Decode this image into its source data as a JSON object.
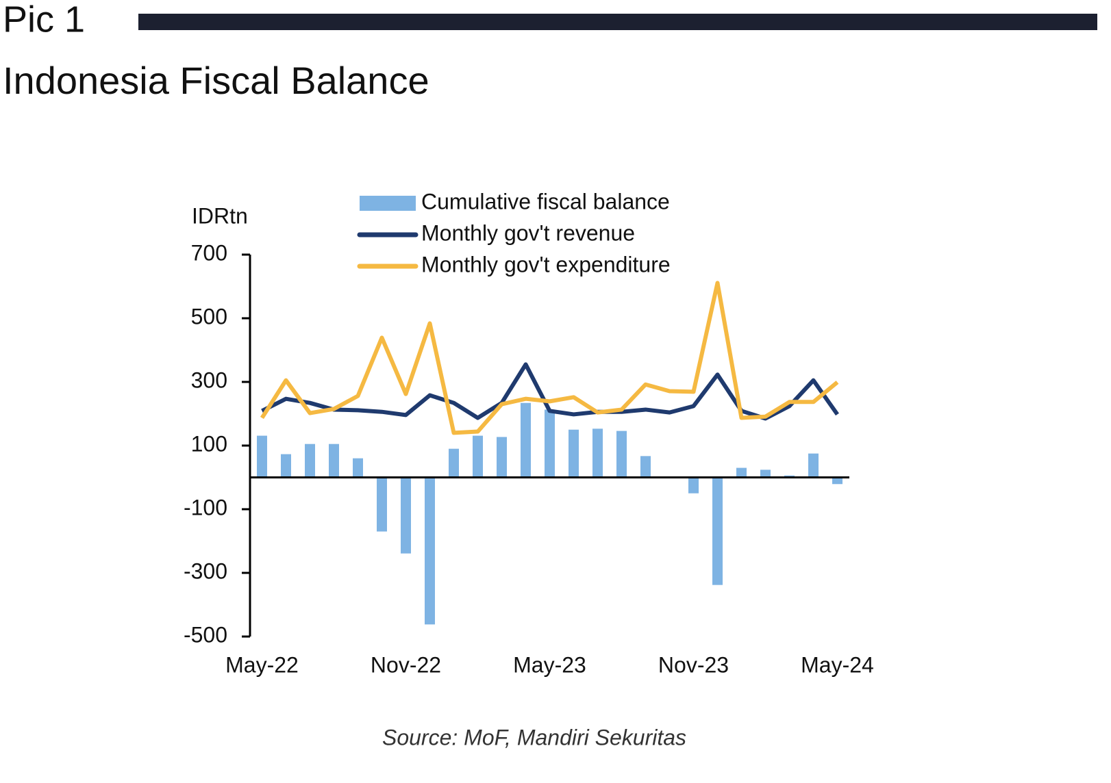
{
  "header": "Pic 1",
  "chart_data": {
    "type": "bar-line",
    "title": "Indonesia Fiscal Balance",
    "y_label": "IDRtn",
    "source": "Source: MoF, Mandiri Sekuritas",
    "categories": [
      "May-22",
      null,
      null,
      null,
      null,
      null,
      "Nov-22",
      null,
      null,
      null,
      null,
      null,
      "May-23",
      null,
      null,
      null,
      null,
      null,
      "Nov-23",
      null,
      null,
      null,
      null,
      null,
      "May-24"
    ],
    "series": [
      {
        "name": "Cumulative fiscal balance",
        "kind": "bar",
        "color": "#7eb3e3",
        "values": [
          131,
          73,
          105,
          105,
          60,
          -170,
          -239,
          -462,
          90,
          131,
          127,
          234,
          213,
          150,
          153,
          146,
          67,
          -1,
          -50,
          -338,
          30,
          24,
          6,
          75,
          -21
        ]
      },
      {
        "name": "Monthly gov't revenue",
        "kind": "line",
        "color": "#1f3a6e",
        "values": [
          209,
          247,
          234,
          213,
          211,
          206,
          196,
          258,
          234,
          187,
          234,
          355,
          209,
          198,
          206,
          206,
          213,
          204,
          224,
          323,
          209,
          185,
          224,
          305,
          198
        ]
      },
      {
        "name": "Monthly gov't expenditure",
        "kind": "line",
        "color": "#f5b942",
        "values": [
          187,
          305,
          202,
          215,
          256,
          439,
          262,
          484,
          140,
          144,
          230,
          247,
          239,
          252,
          204,
          213,
          292,
          271,
          269,
          611,
          187,
          191,
          237,
          237,
          299
        ]
      }
    ],
    "ylim": [
      -500,
      700
    ],
    "yticks": [
      -500,
      -300,
      -100,
      100,
      300,
      500,
      700
    ]
  }
}
